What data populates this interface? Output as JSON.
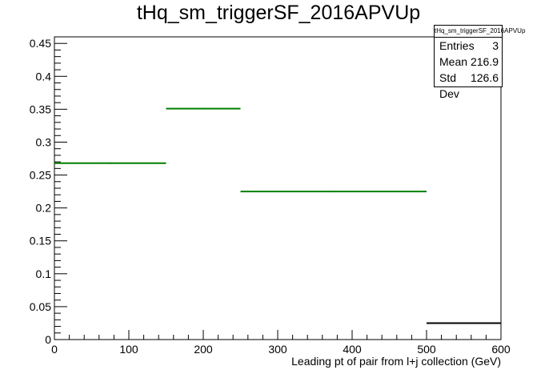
{
  "chart_data": {
    "type": "histogram",
    "title": "tHq_sm_triggerSF_2016APVUp",
    "xlabel": "Leading pt of pair from l+j collection (GeV)",
    "ylabel": "",
    "xlim": [
      0,
      600
    ],
    "ylim": [
      0,
      0.46
    ],
    "x_ticks": [
      0,
      100,
      200,
      300,
      400,
      500,
      600
    ],
    "y_ticks": [
      0,
      0.05,
      0.1,
      0.15,
      0.2,
      0.25,
      0.3,
      0.35,
      0.4,
      0.45
    ],
    "bins": [
      {
        "low": 0,
        "high": 150,
        "value": 0.268,
        "color": "#007f00"
      },
      {
        "low": 150,
        "high": 250,
        "value": 0.351,
        "color": "#007f00"
      },
      {
        "low": 250,
        "high": 500,
        "value": 0.225,
        "color": "#007f00"
      },
      {
        "low": 500,
        "high": 600,
        "value": 0.025,
        "color": "#000000"
      }
    ],
    "grid": false,
    "stats_box": {
      "title": "tHq_sm_triggerSF_2016APVUp",
      "rows": [
        {
          "label": "Entries",
          "value": "3"
        },
        {
          "label": "Mean",
          "value": "216.9"
        },
        {
          "label": "Std Dev",
          "value": "126.6"
        }
      ],
      "placement": "top-right"
    }
  }
}
